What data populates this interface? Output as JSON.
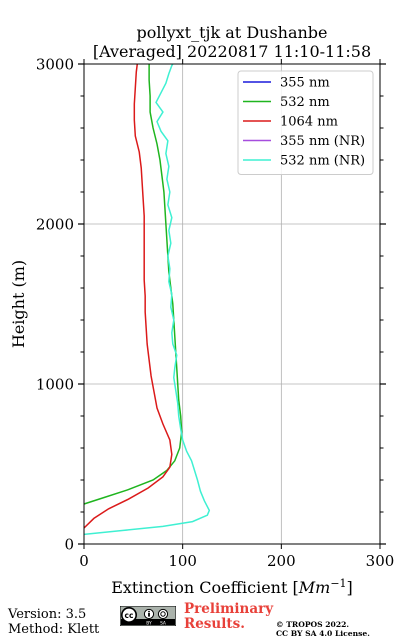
{
  "chart_data": {
    "type": "line",
    "title": [
      "pollyxt_tjk at Dushanbe",
      "[Averaged] 20220817 11:10-11:58"
    ],
    "xlabel": "Extinction Coefficient [Mm⁻¹]",
    "ylabel": "Height (m)",
    "xlim": [
      0,
      300
    ],
    "ylim": [
      0,
      3000
    ],
    "xticks": [
      0,
      100,
      200,
      300
    ],
    "yticks": [
      0,
      1000,
      2000,
      3000
    ],
    "xtick_labels": [
      "0",
      "100",
      "200",
      "300"
    ],
    "ytick_labels": [
      "0",
      "1000",
      "2000",
      "3000"
    ],
    "grid": true,
    "legend_position": "top-right",
    "series": [
      {
        "name": "355 nm",
        "color": "#1a1adb",
        "points": []
      },
      {
        "name": "532 nm",
        "color": "#1fb51f",
        "points": [
          [
            0,
            250
          ],
          [
            20,
            290
          ],
          [
            45,
            340
          ],
          [
            70,
            400
          ],
          [
            84,
            460
          ],
          [
            92,
            520
          ],
          [
            97,
            600
          ],
          [
            99,
            700
          ],
          [
            98,
            800
          ],
          [
            96,
            900
          ],
          [
            95,
            1000
          ],
          [
            94,
            1100
          ],
          [
            93,
            1200
          ],
          [
            92,
            1300
          ],
          [
            91,
            1400
          ],
          [
            90,
            1500
          ],
          [
            88,
            1600
          ],
          [
            86,
            1700
          ],
          [
            85,
            1800
          ],
          [
            84,
            1900
          ],
          [
            83,
            2000
          ],
          [
            82,
            2100
          ],
          [
            81,
            2200
          ],
          [
            79,
            2300
          ],
          [
            77,
            2400
          ],
          [
            74,
            2500
          ],
          [
            70,
            2600
          ],
          [
            67,
            2700
          ],
          [
            67,
            2800
          ],
          [
            66,
            2900
          ],
          [
            66,
            3000
          ]
        ]
      },
      {
        "name": "1064 nm",
        "color": "#db1a1a",
        "points": [
          [
            0,
            100
          ],
          [
            10,
            160
          ],
          [
            25,
            220
          ],
          [
            45,
            280
          ],
          [
            65,
            350
          ],
          [
            80,
            420
          ],
          [
            87,
            480
          ],
          [
            89,
            560
          ],
          [
            87,
            650
          ],
          [
            80,
            750
          ],
          [
            74,
            850
          ],
          [
            71,
            950
          ],
          [
            68,
            1050
          ],
          [
            66,
            1150
          ],
          [
            64,
            1250
          ],
          [
            63,
            1350
          ],
          [
            62,
            1450
          ],
          [
            62,
            1550
          ],
          [
            61,
            1650
          ],
          [
            61,
            1750
          ],
          [
            61,
            1850
          ],
          [
            61,
            1950
          ],
          [
            61,
            2050
          ],
          [
            60,
            2150
          ],
          [
            59,
            2250
          ],
          [
            58,
            2350
          ],
          [
            56,
            2450
          ],
          [
            52,
            2550
          ],
          [
            51,
            2650
          ],
          [
            51,
            2750
          ],
          [
            52,
            2850
          ],
          [
            53,
            2950
          ],
          [
            54,
            3000
          ]
        ]
      },
      {
        "name": "355 nm (NR)",
        "color": "#a64dde",
        "points": []
      },
      {
        "name": "532 nm (NR)",
        "color": "#3ff0d2",
        "points": [
          [
            0,
            60
          ],
          [
            40,
            85
          ],
          [
            80,
            110
          ],
          [
            110,
            140
          ],
          [
            125,
            180
          ],
          [
            127,
            210
          ],
          [
            122,
            270
          ],
          [
            118,
            330
          ],
          [
            115,
            400
          ],
          [
            112,
            460
          ],
          [
            109,
            520
          ],
          [
            104,
            580
          ],
          [
            100,
            650
          ],
          [
            98,
            720
          ],
          [
            96,
            800
          ],
          [
            95,
            880
          ],
          [
            93,
            960
          ],
          [
            91,
            1040
          ],
          [
            92,
            1100
          ],
          [
            94,
            1180
          ],
          [
            90,
            1250
          ],
          [
            89,
            1320
          ],
          [
            91,
            1400
          ],
          [
            88,
            1480
          ],
          [
            89,
            1560
          ],
          [
            86,
            1640
          ],
          [
            87,
            1720
          ],
          [
            85,
            1800
          ],
          [
            88,
            1880
          ],
          [
            86,
            1960
          ],
          [
            89,
            2040
          ],
          [
            85,
            2120
          ],
          [
            87,
            2200
          ],
          [
            84,
            2280
          ],
          [
            86,
            2360
          ],
          [
            83,
            2440
          ],
          [
            85,
            2520
          ],
          [
            78,
            2580
          ],
          [
            74,
            2640
          ],
          [
            80,
            2700
          ],
          [
            73,
            2760
          ],
          [
            78,
            2820
          ],
          [
            83,
            2880
          ],
          [
            86,
            2940
          ],
          [
            89,
            2990
          ],
          [
            90,
            3000
          ]
        ]
      }
    ]
  },
  "footer": {
    "version": "Version: 3.5",
    "method": "Method: Klett",
    "preliminary_line1": "Preliminary",
    "preliminary_line2": "Results.",
    "copyright_line1": "© TROPOS 2022.",
    "copyright_line2": "CC BY SA 4.0 License.",
    "badge_text": [
      "cc",
      "BY",
      "SA"
    ]
  }
}
